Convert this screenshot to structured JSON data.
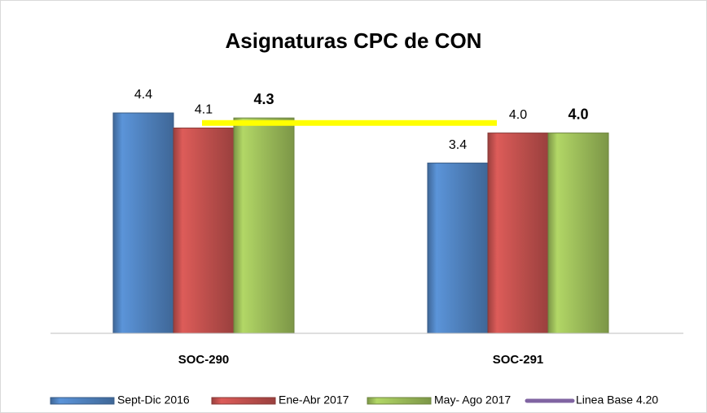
{
  "chart_data": {
    "type": "bar",
    "title": "Asignaturas CPC de CON",
    "categories": [
      "SOC-290",
      "SOC-291"
    ],
    "series": [
      {
        "name": "Sept-Dic  2016",
        "color": "#4f81bd",
        "values": [
          4.4,
          3.4
        ],
        "value_labels": [
          "4.4",
          "3.4"
        ]
      },
      {
        "name": "Ene-Abr 2017",
        "color": "#c0504d",
        "values": [
          4.1,
          4.0
        ],
        "value_labels": [
          "4.1",
          "4.0"
        ]
      },
      {
        "name": "May- Ago 2017",
        "color": "#9bbb59",
        "values": [
          4.3,
          4.0
        ],
        "value_labels": [
          "4.3",
          "4.0"
        ]
      }
    ],
    "baseline": {
      "name": "Linea Base 4.20",
      "value": 4.2,
      "color": "#ffff00",
      "legend_color": "#8064a2"
    },
    "ylim": [
      0,
      5
    ],
    "legend": "bottom"
  }
}
